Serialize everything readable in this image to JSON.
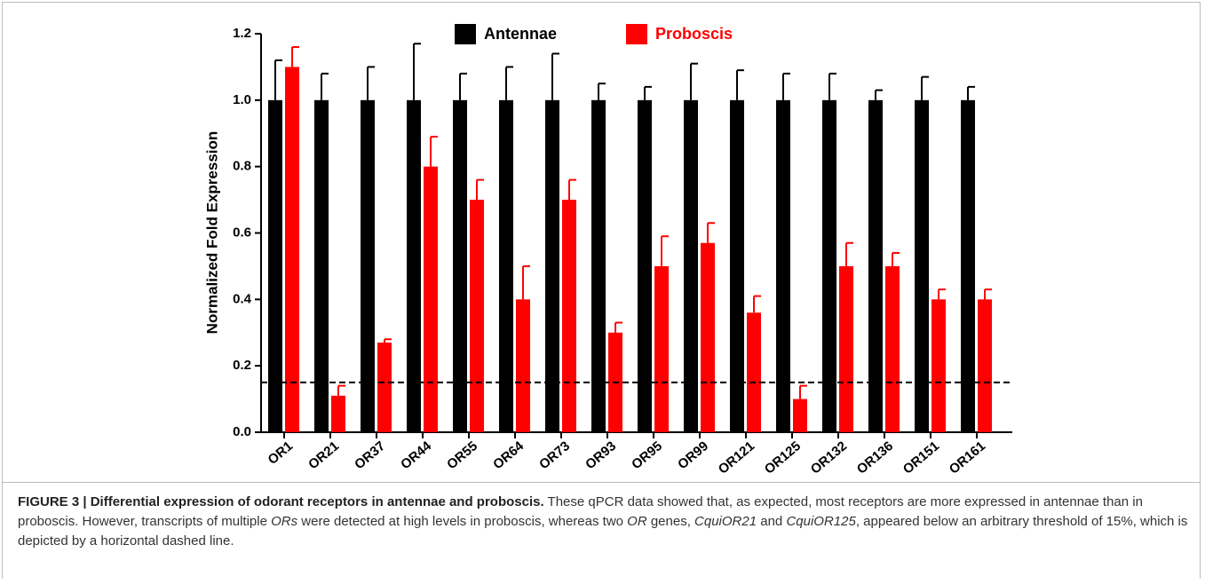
{
  "chart_data": {
    "type": "bar",
    "ylabel": "Normalized Fold Expression",
    "categories": [
      "OR1",
      "OR21",
      "OR37",
      "OR44",
      "OR55",
      "OR64",
      "OR73",
      "OR93",
      "OR95",
      "OR99",
      "OR121",
      "OR125",
      "OR132",
      "OR136",
      "OR151",
      "OR161"
    ],
    "series": [
      {
        "name": "Antennae",
        "color": "#000000",
        "values": [
          1,
          1,
          1,
          1,
          1,
          1,
          1,
          1,
          1,
          1,
          1,
          1,
          1,
          1,
          1,
          1
        ],
        "errors": [
          0.12,
          0.08,
          0.1,
          0.17,
          0.08,
          0.1,
          0.14,
          0.05,
          0.04,
          0.11,
          0.09,
          0.08,
          0.08,
          0.03,
          0.07,
          0.04
        ]
      },
      {
        "name": "Proboscis",
        "color": "#ff0000",
        "values": [
          1.1,
          0.11,
          0.27,
          0.8,
          0.7,
          0.4,
          0.7,
          0.3,
          0.5,
          0.57,
          0.36,
          0.1,
          0.5,
          0.5,
          0.4,
          0.4
        ],
        "errors": [
          0.06,
          0.03,
          0.01,
          0.09,
          0.06,
          0.1,
          0.06,
          0.03,
          0.09,
          0.06,
          0.05,
          0.04,
          0.07,
          0.04,
          0.03,
          0.03
        ]
      }
    ],
    "threshold": 0.15,
    "ylim": [
      0,
      1.2
    ],
    "yticks": [
      {
        "value": 0,
        "label": "0.0"
      },
      0.2,
      0.4,
      0.6,
      0.8,
      {
        "value": 1,
        "label": "1.0"
      },
      1.2
    ],
    "legend": "top"
  },
  "caption": {
    "label": "FIGURE 3 | Differential expression of odorant receptors in antennae and proboscis.",
    "parts": [
      " These qPCR data showed that, as expected, most receptors are more expressed in antennae than in proboscis. However, transcripts of multiple ",
      "ORs",
      " were detected at high levels in proboscis, whereas two ",
      "OR",
      " genes, ",
      "CquiOR21",
      " and ",
      "CquiOR125",
      ", appeared below an arbitrary threshold of 15%, which is depicted by a horizontal dashed line."
    ]
  }
}
